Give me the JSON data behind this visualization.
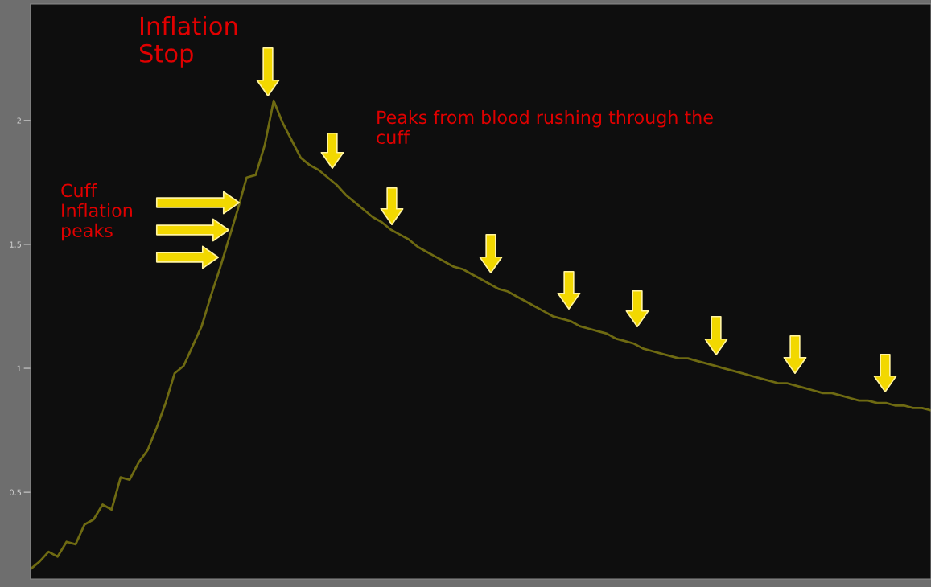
{
  "chart_data": {
    "type": "line",
    "tick_labels": "y",
    "grid": false,
    "legend": false,
    "marker": "none",
    "line_style": "solid",
    "categories": [
      null,
      null,
      null,
      null,
      null,
      null,
      null,
      null,
      null,
      null,
      null,
      null,
      null,
      null,
      null,
      null,
      null,
      null,
      null,
      null,
      null,
      null,
      null,
      null,
      null,
      null,
      null,
      null,
      null,
      null,
      null,
      null,
      null,
      null,
      null,
      null,
      null,
      null,
      null,
      null,
      null,
      null,
      null,
      null,
      null,
      null,
      null,
      null,
      null,
      null,
      null,
      null,
      null,
      null,
      null,
      null,
      null,
      null,
      null,
      null,
      null,
      null,
      null,
      null,
      null,
      null,
      null,
      null,
      null,
      null,
      null,
      null,
      null,
      null,
      null,
      null,
      null,
      null,
      null,
      null,
      null,
      null,
      null,
      null,
      null,
      null,
      null,
      null,
      null,
      null,
      null,
      null,
      null,
      null,
      null,
      null,
      null,
      null,
      null,
      null,
      null
    ],
    "series": [
      {
        "color": "#6e6a12",
        "values": [
          0.19,
          0.22,
          0.26,
          0.24,
          0.3,
          0.29,
          0.37,
          0.39,
          0.45,
          0.43,
          0.56,
          0.55,
          0.62,
          0.67,
          0.76,
          0.86,
          0.98,
          1.01,
          1.09,
          1.17,
          1.29,
          1.4,
          1.52,
          1.64,
          1.77,
          1.78,
          1.9,
          2.08,
          1.99,
          1.92,
          1.85,
          1.82,
          1.8,
          1.77,
          1.74,
          1.7,
          1.67,
          1.64,
          1.61,
          1.59,
          1.56,
          1.54,
          1.52,
          1.49,
          1.47,
          1.45,
          1.43,
          1.41,
          1.4,
          1.38,
          1.36,
          1.34,
          1.32,
          1.31,
          1.29,
          1.27,
          1.25,
          1.23,
          1.21,
          1.2,
          1.19,
          1.17,
          1.16,
          1.15,
          1.14,
          1.12,
          1.11,
          1.1,
          1.08,
          1.07,
          1.06,
          1.05,
          1.04,
          1.04,
          1.03,
          1.02,
          1.01,
          1.0,
          0.99,
          0.98,
          0.97,
          0.96,
          0.95,
          0.94,
          0.94,
          0.93,
          0.92,
          0.91,
          0.9,
          0.9,
          0.89,
          0.88,
          0.87,
          0.87,
          0.86,
          0.86,
          0.85,
          0.85,
          0.84,
          0.84,
          0.83
        ]
      }
    ],
    "ylim": [
      0.15,
      2.47
    ],
    "yticks": [
      {
        "value": 2,
        "label": "2"
      },
      {
        "value": 1.5,
        "label": "1.5"
      },
      {
        "value": 1,
        "label": "1"
      },
      {
        "value": 0.5,
        "label": "0.5"
      }
    ],
    "annotations": [
      "Inflation\nStop",
      "Cuff\nInflation\npeaks",
      "Peaks from blood rushing through the\ncuff"
    ]
  }
}
